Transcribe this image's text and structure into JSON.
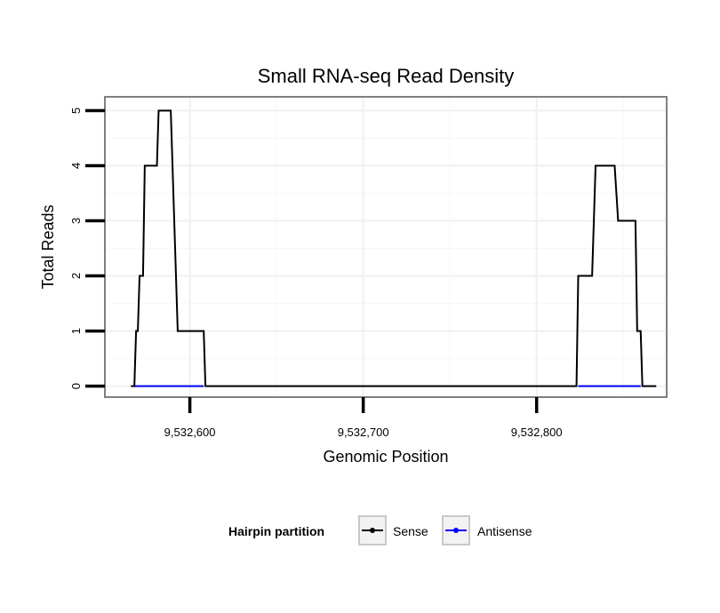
{
  "chart_data": {
    "type": "line",
    "title": "Small RNA-seq Read Density",
    "xlabel": "Genomic Position",
    "ylabel": "Total Reads",
    "xlim": [
      9532551,
      9532875
    ],
    "ylim": [
      -0.2,
      5.25
    ],
    "x_ticks": [
      {
        "value": 9532600,
        "label": "9,532,600"
      },
      {
        "value": 9532700,
        "label": "9,532,700"
      },
      {
        "value": 9532800,
        "label": "9,532,800"
      }
    ],
    "y_ticks": [
      {
        "value": 0,
        "label": "0"
      },
      {
        "value": 1,
        "label": "1"
      },
      {
        "value": 2,
        "label": "2"
      },
      {
        "value": 3,
        "label": "3"
      },
      {
        "value": 4,
        "label": "4"
      },
      {
        "value": 5,
        "label": "5"
      }
    ],
    "grid": true,
    "legend": {
      "title": "Hairpin partition",
      "position": "bottom",
      "entries": [
        "Sense",
        "Antisense"
      ]
    },
    "series": [
      {
        "name": "Sense",
        "color": "#000000",
        "x": [
          9532566,
          9532568,
          9532569,
          9532570,
          9532571,
          9532573,
          9532574,
          9532581,
          9532582,
          9532589,
          9532593,
          9532608,
          9532609,
          9532823,
          9532824,
          9532832,
          9532834,
          9532845,
          9532847,
          9532857,
          9532858,
          9532860,
          9532861,
          9532862,
          9532869
        ],
        "values": [
          0,
          0,
          1,
          1,
          2,
          2,
          4,
          4,
          5,
          5,
          1,
          1,
          0,
          0,
          2,
          2,
          4,
          4,
          3,
          3,
          1,
          1,
          0,
          0,
          0
        ]
      },
      {
        "name": "Antisense",
        "color": "#0000ff",
        "x": [
          9532568,
          9532608,
          9532824,
          9532860
        ],
        "values": [
          0,
          0,
          0,
          0
        ],
        "segments": [
          [
            0,
            1
          ],
          [
            2,
            3
          ]
        ]
      }
    ]
  }
}
